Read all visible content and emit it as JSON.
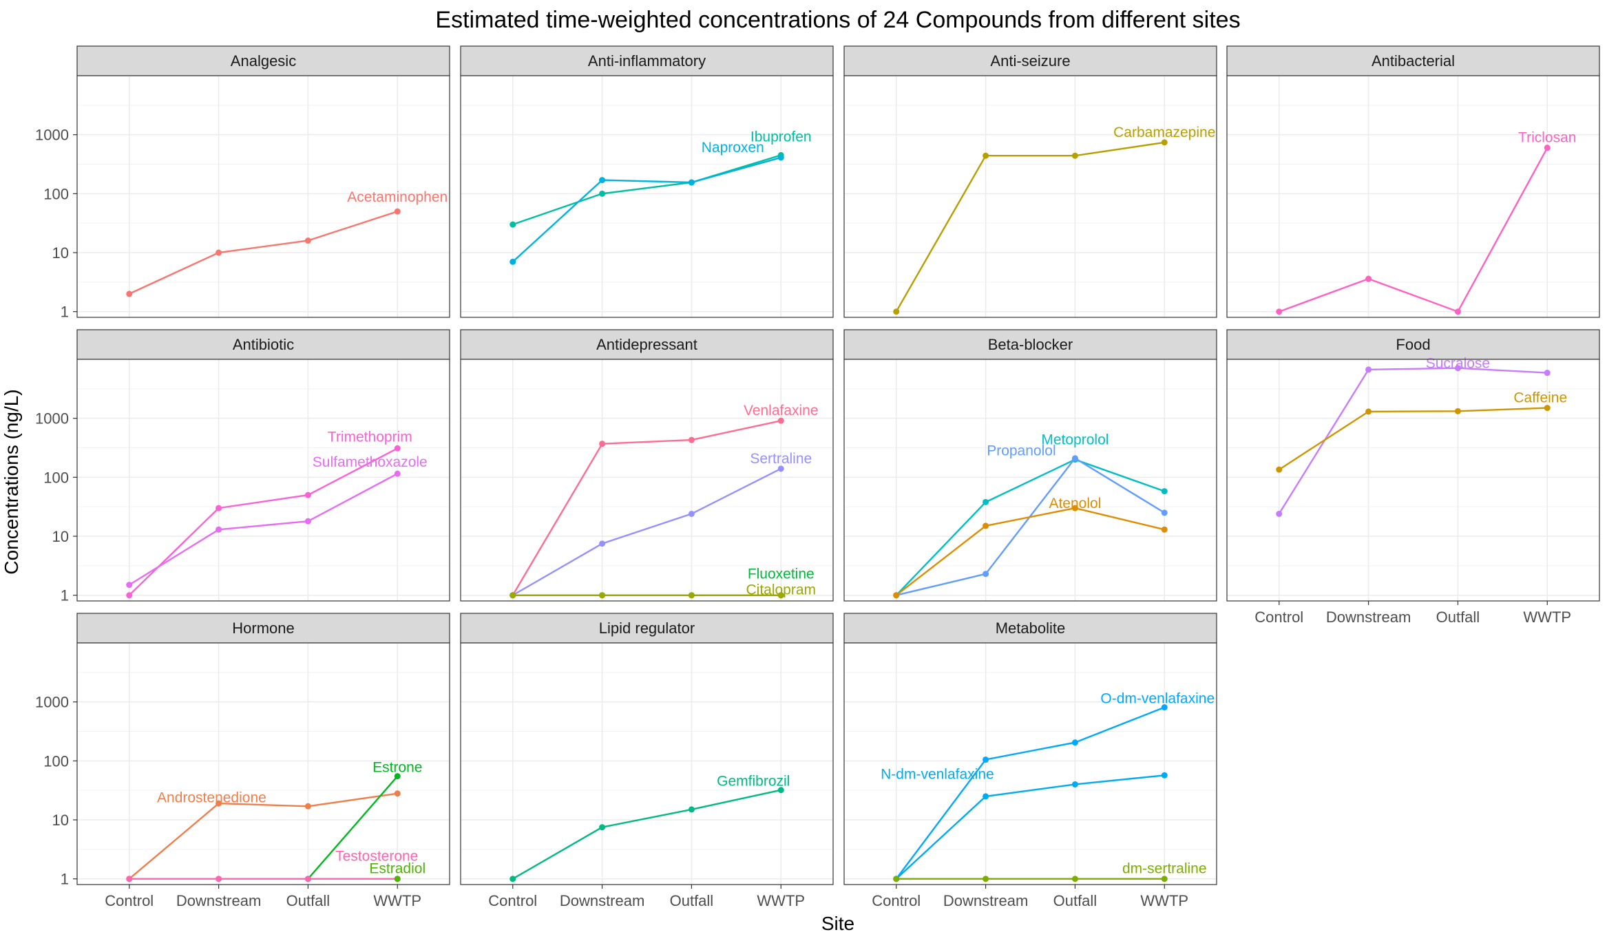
{
  "chart_data": {
    "type": "line",
    "title": "Estimated time-weighted concentrations of 24 Compounds from different sites",
    "xlabel": "Site",
    "ylabel": "Concentrations (ng/L)",
    "y_scale": "log10",
    "ylim": [
      0.8,
      10000
    ],
    "y_ticks": [
      1,
      10,
      100,
      1000
    ],
    "y_tick_labels": [
      "1",
      "10",
      "100",
      "1000"
    ],
    "categories": [
      "Control",
      "Downstream",
      "Outfall",
      "WWTP"
    ],
    "grid": true,
    "legend": "none",
    "facets": [
      {
        "name": "Analgesic",
        "series": [
          {
            "name": "Acetaminophen",
            "color": "#F8766D",
            "values": [
              2,
              10,
              16,
              50
            ]
          }
        ]
      },
      {
        "name": "Anti-inflammatory",
        "series": [
          {
            "name": "Ibuprofen",
            "color": "#00BFA0",
            "values": [
              30,
              100,
              155,
              450
            ]
          },
          {
            "name": "Naproxen",
            "color": "#00B2E0",
            "values": [
              7,
              170,
              155,
              410
            ]
          }
        ]
      },
      {
        "name": "Anti-seizure",
        "series": [
          {
            "name": "Carbamazepine",
            "color": "#B79F00",
            "values": [
              1,
              440,
              440,
              740
            ]
          }
        ]
      },
      {
        "name": "Antibacterial",
        "series": [
          {
            "name": "Triclosan",
            "color": "#FF61C3",
            "values": [
              1,
              3.6,
              1,
              600
            ]
          }
        ]
      },
      {
        "name": "Antibiotic",
        "series": [
          {
            "name": "Trimethoprim",
            "color": "#FB61D7",
            "values": [
              1,
              30,
              50,
              310
            ]
          },
          {
            "name": "Sulfamethoxazole",
            "color": "#E76BF3",
            "values": [
              1.5,
              13,
              18,
              115
            ]
          }
        ]
      },
      {
        "name": "Antidepressant",
        "series": [
          {
            "name": "Venlafaxine",
            "color": "#FF6C91",
            "values": [
              1,
              370,
              430,
              910
            ]
          },
          {
            "name": "Sertraline",
            "color": "#9590FF",
            "values": [
              1,
              7.5,
              24,
              140
            ]
          },
          {
            "name": "Fluoxetine",
            "color": "#00BA38",
            "values": [
              1,
              1,
              1,
              1
            ]
          },
          {
            "name": "Citalopram",
            "color": "#9CA700",
            "values": [
              1,
              1,
              1,
              1
            ]
          }
        ]
      },
      {
        "name": "Beta-blocker",
        "series": [
          {
            "name": "Metoprolol",
            "color": "#00BFC4",
            "values": [
              1,
              38,
              200,
              58
            ]
          },
          {
            "name": "Propanolol",
            "color": "#619CFF",
            "values": [
              1,
              2.3,
              210,
              25
            ]
          },
          {
            "name": "Atenolol",
            "color": "#DE8C00",
            "values": [
              1,
              15,
              30,
              13
            ]
          }
        ]
      },
      {
        "name": "Food",
        "series": [
          {
            "name": "Sucralose",
            "color": "#C77CFF",
            "values": [
              24,
              6700,
              7100,
              5900
            ]
          },
          {
            "name": "Caffeine",
            "color": "#CD9600",
            "values": [
              135,
              1300,
              1320,
              1500
            ]
          }
        ]
      },
      {
        "name": "Hormone",
        "series": [
          {
            "name": "Androstenedione",
            "color": "#F07E4B",
            "values": [
              1,
              19,
              17,
              28
            ]
          },
          {
            "name": "Estrone",
            "color": "#00B81F",
            "values": [
              null,
              null,
              1,
              55
            ]
          },
          {
            "name": "Testosterone",
            "color": "#FF64B0",
            "values": [
              1,
              1,
              1,
              1
            ]
          },
          {
            "name": "Estradiol",
            "color": "#4DB400",
            "values": [
              null,
              null,
              null,
              1
            ]
          }
        ]
      },
      {
        "name": "Lipid regulator",
        "series": [
          {
            "name": "Gemfibrozil",
            "color": "#00B983",
            "values": [
              1,
              7.5,
              15,
              32
            ]
          }
        ]
      },
      {
        "name": "Metabolite",
        "series": [
          {
            "name": "O-dm-venlafaxine",
            "color": "#00A9FF",
            "values": [
              1,
              105,
              205,
              810
            ]
          },
          {
            "name": "N-dm-venlafaxine",
            "color": "#00ABF0",
            "values": [
              1,
              25,
              40,
              57
            ]
          },
          {
            "name": "dm-sertraline",
            "color": "#7CAE00",
            "values": [
              1,
              1,
              1,
              1
            ]
          }
        ]
      }
    ]
  }
}
